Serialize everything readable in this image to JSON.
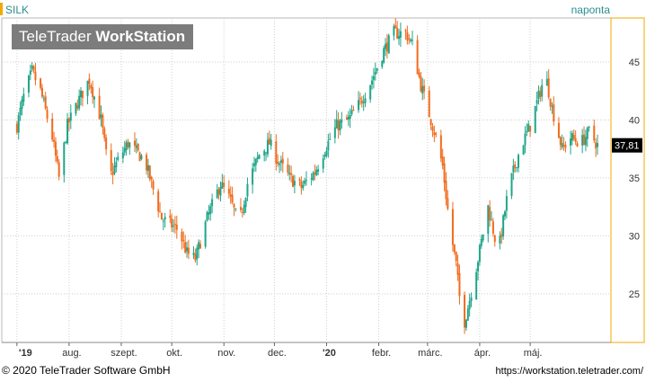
{
  "header": {
    "ticker": "SILK",
    "period": "naponta"
  },
  "watermark": {
    "brand_light": "TeleTrader",
    "brand_bold": "WorkStation"
  },
  "footer": {
    "copyright": "© 2020 TeleTrader Software GmbH",
    "url": "https://workstation.teletrader.com/"
  },
  "chart_data": {
    "type": "candlestick",
    "title": "",
    "xlabel": "",
    "ylabel": "",
    "ylim": [
      20.8,
      48.8
    ],
    "y_ticks": [
      25,
      30,
      35,
      40,
      45
    ],
    "y_tick_labels": [
      "25",
      "30",
      "35",
      "40",
      "45"
    ],
    "x_tick_labels": [
      "'19",
      "aug.",
      "szept.",
      "okt.",
      "nov.",
      "dec.",
      "'20",
      "febr.",
      "márc.",
      "ápr.",
      "máj."
    ],
    "last_price_label": "37,81",
    "last_price": 37.81,
    "colors": {
      "up": "#1fa58a",
      "down": "#f26b1d",
      "grid": "#cfcfcf"
    },
    "grid": true,
    "path": [
      [
        "2019-07-01",
        39.5
      ],
      [
        "2019-07-05",
        42.0
      ],
      [
        "2019-07-10",
        44.2
      ],
      [
        "2019-07-15",
        42.5
      ],
      [
        "2019-07-22",
        38.5
      ],
      [
        "2019-07-26",
        35.0
      ],
      [
        "2019-07-31",
        39.5
      ],
      [
        "2019-08-06",
        41.5
      ],
      [
        "2019-08-13",
        43.5
      ],
      [
        "2019-08-20",
        40.0
      ],
      [
        "2019-08-25",
        35.0
      ],
      [
        "2019-08-30",
        36.5
      ],
      [
        "2019-09-05",
        38.0
      ],
      [
        "2019-09-15",
        36.5
      ],
      [
        "2019-09-25",
        31.5
      ],
      [
        "2019-10-05",
        30.5
      ],
      [
        "2019-10-10",
        28.5
      ],
      [
        "2019-10-15",
        28.0
      ],
      [
        "2019-10-22",
        31.5
      ],
      [
        "2019-10-30",
        34.5
      ],
      [
        "2019-11-05",
        33.0
      ],
      [
        "2019-11-10",
        31.0
      ],
      [
        "2019-11-15",
        34.5
      ],
      [
        "2019-11-22",
        37.0
      ],
      [
        "2019-11-28",
        38.0
      ],
      [
        "2019-12-03",
        36.5
      ],
      [
        "2019-12-10",
        35.0
      ],
      [
        "2019-12-17",
        34.2
      ],
      [
        "2019-12-25",
        35.5
      ],
      [
        "2019-12-31",
        37.5
      ],
      [
        "2020-01-07",
        39.5
      ],
      [
        "2020-01-14",
        40.0
      ],
      [
        "2020-01-21",
        41.5
      ],
      [
        "2020-01-28",
        43.5
      ],
      [
        "2020-02-04",
        46.0
      ],
      [
        "2020-02-10",
        47.5
      ],
      [
        "2020-02-17",
        47.5
      ],
      [
        "2020-02-21",
        46.5
      ],
      [
        "2020-02-26",
        43.0
      ],
      [
        "2020-03-02",
        40.5
      ],
      [
        "2020-03-06",
        38.5
      ],
      [
        "2020-03-10",
        36.0
      ],
      [
        "2020-03-14",
        31.0
      ],
      [
        "2020-03-18",
        27.5
      ],
      [
        "2020-03-22",
        22.0
      ],
      [
        "2020-03-26",
        24.5
      ],
      [
        "2020-03-31",
        28.0
      ],
      [
        "2020-04-06",
        32.5
      ],
      [
        "2020-04-12",
        28.5
      ],
      [
        "2020-04-18",
        34.0
      ],
      [
        "2020-04-25",
        37.5
      ],
      [
        "2020-05-01",
        39.5
      ],
      [
        "2020-05-06",
        42.0
      ],
      [
        "2020-05-10",
        44.0
      ],
      [
        "2020-05-14",
        41.0
      ],
      [
        "2020-05-20",
        37.5
      ],
      [
        "2020-05-25",
        38.5
      ],
      [
        "2020-05-31",
        38.0
      ],
      [
        "2020-06-05",
        39.0
      ],
      [
        "2020-06-10",
        37.81
      ]
    ]
  }
}
